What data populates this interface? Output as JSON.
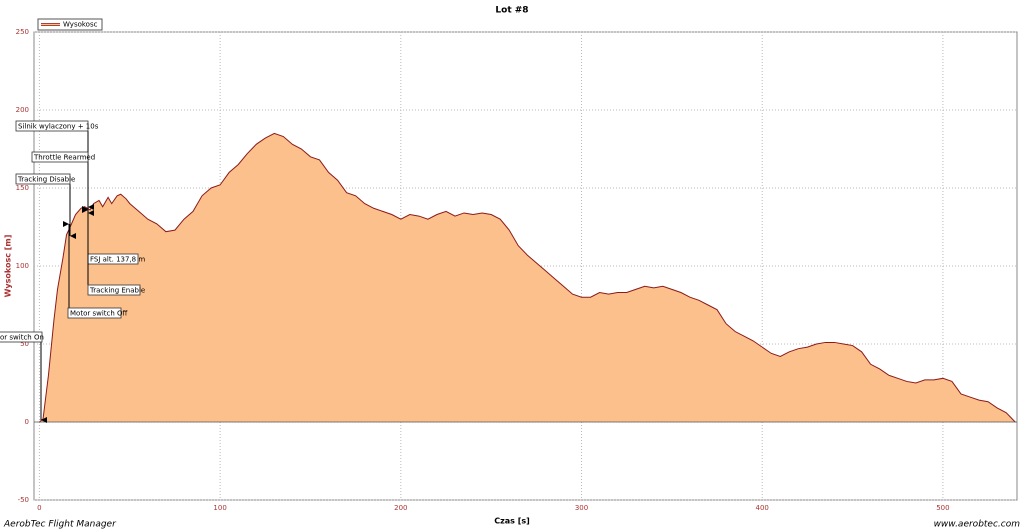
{
  "chart_data": {
    "type": "area",
    "title": "Lot #8",
    "x_label": "Czas [s]",
    "y_label": "Wysokosc [m]",
    "x": [
      0,
      2,
      5,
      8,
      10,
      13,
      15,
      17,
      20,
      23,
      25,
      28,
      30,
      33,
      35,
      38,
      40,
      43,
      45,
      48,
      50,
      55,
      60,
      65,
      70,
      75,
      80,
      85,
      90,
      95,
      100,
      105,
      110,
      115,
      120,
      125,
      130,
      135,
      140,
      145,
      150,
      155,
      160,
      165,
      170,
      175,
      180,
      185,
      190,
      195,
      200,
      205,
      210,
      215,
      220,
      225,
      230,
      235,
      240,
      245,
      250,
      255,
      260,
      265,
      270,
      275,
      280,
      285,
      290,
      295,
      300,
      305,
      310,
      315,
      320,
      325,
      330,
      335,
      340,
      345,
      350,
      355,
      360,
      365,
      370,
      375,
      380,
      385,
      390,
      395,
      400,
      405,
      410,
      415,
      420,
      425,
      430,
      435,
      440,
      445,
      450,
      455,
      460,
      465,
      470,
      475,
      480,
      485,
      490,
      495,
      500,
      505,
      510,
      515,
      520,
      525,
      530,
      535,
      540
    ],
    "series": [
      {
        "name": "Wysokosc",
        "color": "#fcc08c",
        "line_color": "#8b1a1a",
        "values": [
          0,
          2,
          30,
          65,
          85,
          105,
          120,
          125,
          133,
          137,
          138,
          136,
          140,
          142,
          138,
          144,
          140,
          145,
          146,
          143,
          140,
          135,
          130,
          127,
          122,
          123,
          130,
          135,
          145,
          150,
          152,
          160,
          165,
          172,
          178,
          182,
          185,
          183,
          178,
          175,
          170,
          168,
          160,
          155,
          147,
          145,
          140,
          137,
          135,
          133,
          130,
          133,
          132,
          130,
          133,
          135,
          132,
          134,
          133,
          134,
          133,
          130,
          123,
          113,
          107,
          102,
          97,
          92,
          87,
          82,
          80,
          80,
          83,
          82,
          83,
          83,
          85,
          87,
          86,
          87,
          85,
          83,
          80,
          78,
          75,
          72,
          63,
          58,
          55,
          52,
          48,
          44,
          42,
          45,
          47,
          48,
          50,
          51,
          51,
          50,
          49,
          45,
          37,
          34,
          30,
          28,
          26,
          25,
          27,
          27,
          28,
          26,
          18,
          16,
          14,
          13,
          9,
          6,
          0
        ]
      }
    ],
    "xlim": [
      -3,
      541
    ],
    "ylim": [
      -50,
      250
    ],
    "xticks": [
      0,
      100,
      200,
      300,
      400,
      500
    ],
    "yticks": [
      -50,
      0,
      50,
      100,
      150,
      200,
      250
    ],
    "grid": true,
    "annotations": [
      "Silnik wylaczony + 10s",
      "Throttle Rearmed",
      "Tracking Disable",
      "FSJ alt. 137,8 m",
      "Tracking Enable",
      "Motor switch Off",
      "or switch On"
    ]
  },
  "footer": {
    "left": "AerobTec Flight Manager",
    "right": "www.aerobtec.com"
  }
}
